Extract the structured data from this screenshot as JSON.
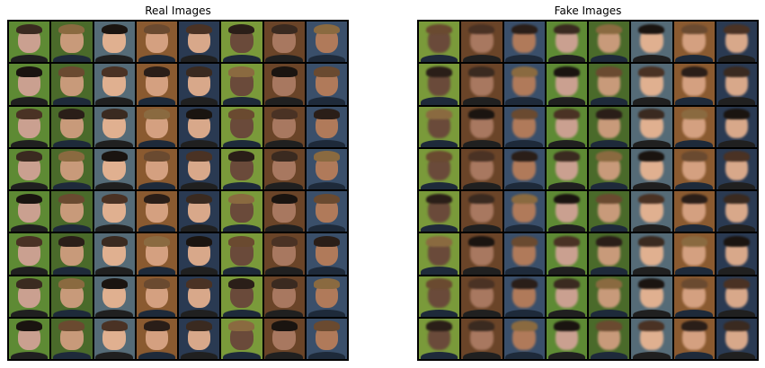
{
  "titles": {
    "real": "Real Images",
    "fake": "Fake Images"
  },
  "palette": {
    "backgrounds": [
      "#4a6a2a",
      "#5e8a34",
      "#3a4f6a",
      "#6a4428",
      "#7a9a3a",
      "#2a3a52",
      "#8a5a30",
      "#556b77"
    ],
    "skin": [
      "#c89a7a",
      "#d8a88a",
      "#b07a5a",
      "#e0b090",
      "#6a4a3a",
      "#caa090",
      "#d4a080",
      "#a87860"
    ],
    "hair": [
      "#2a1e18",
      "#4a3224",
      "#6a4a30",
      "#1a1410",
      "#8a6a40",
      "#3a2a20"
    ],
    "clothing": [
      "#1e2a3a",
      "#3a3a44",
      "#5a6a8a",
      "#202020",
      "#6a3a2a",
      "#2e4a6a"
    ]
  }
}
